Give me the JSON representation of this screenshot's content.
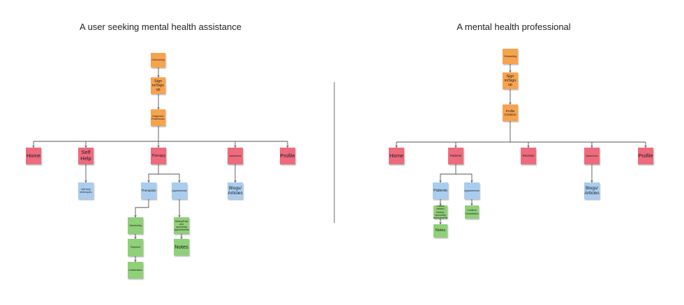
{
  "titles": {
    "left": "A user seeking mental health assistance",
    "right": "A mental health professional"
  },
  "left": {
    "onboarding": "Onboarding",
    "signin": "Sign in/Sign up",
    "diagnosis": "Diagnosis/ Preferences",
    "home": "Home",
    "self_help": "Self Help",
    "therapy": "Therapy",
    "awareness": "Awareness",
    "profile": "Profile",
    "self_help_techniques": "Self help techniques",
    "therapists": "Therapists",
    "appointments": "Appointments",
    "blogs": "Blogs/ Articles",
    "scheduling": "Scheduling",
    "payment": "Payment",
    "confirmation": "Confirmation",
    "history": "History/Past and upcoming appointments",
    "notes": "Notes"
  },
  "right": {
    "onboarding": "Onboarding",
    "signin": "Sign in/Sign up",
    "profile_creation": "Profile Creation",
    "home": "Home",
    "patients": "Patients",
    "reviews": "Reviews",
    "awareness": "Awareness",
    "profile": "Profile",
    "patients_child": "Patients",
    "appointments": "Appointments",
    "blogs": "Blogs/ Articles",
    "patient_details": "Patient details/ history/ upcoming appointments",
    "confirm_cancel": "Confirm/ Cancellation",
    "notes": "Notes"
  }
}
